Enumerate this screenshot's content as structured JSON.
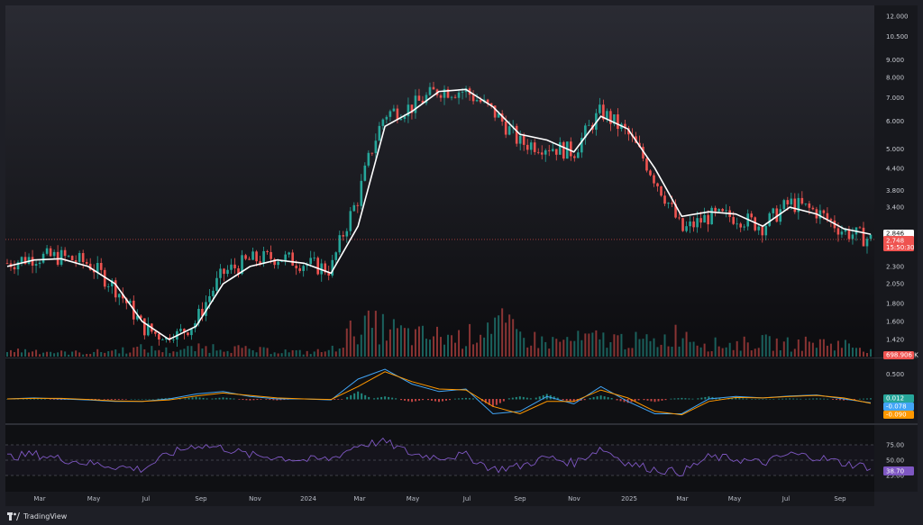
{
  "brand": {
    "name": "TradingView",
    "logo_icon": "tradingview-logo-icon"
  },
  "colors": {
    "up": "#26a69a",
    "down": "#ef5350",
    "ma": "#ffffff",
    "macd": "#42a5f5",
    "signal": "#ff9800",
    "rsi": "#7e57c2",
    "background": "#131419"
  },
  "price_axis": {
    "labels": [
      "12.000",
      "10.500",
      "9.000",
      "8.000",
      "7.000",
      "6.000",
      "5.000",
      "4.400",
      "3.800",
      "3.400",
      "2.300",
      "2.050",
      "1.800",
      "1.600",
      "1.420"
    ]
  },
  "badges": {
    "ma_value": "2.846",
    "last_price": "2.748",
    "countdown": "15:50:30",
    "volume": "698.906 K",
    "macd_hist": "0.012",
    "macd": "-0.078",
    "signal": "-0.090",
    "rsi": "38.70"
  },
  "macd_axis": {
    "labels": [
      "0.500"
    ]
  },
  "rsi_axis": {
    "labels": [
      "75.00",
      "50.00",
      "25.00"
    ]
  },
  "time_axis": {
    "labels": [
      "Mar",
      "May",
      "Jul",
      "Sep",
      "Nov",
      "2024",
      "Mar",
      "May",
      "Jul",
      "Sep",
      "Nov",
      "2025",
      "Mar",
      "May",
      "Jul",
      "Sep"
    ]
  },
  "chart_data": [
    {
      "type": "candlestick",
      "scale": "log",
      "ylim": [
        1.3,
        12.5
      ],
      "x": [
        "2023-02",
        "2023-03",
        "2023-04",
        "2023-05",
        "2023-06",
        "2023-07",
        "2023-08",
        "2023-09",
        "2023-10",
        "2023-11",
        "2023-12",
        "2024-01",
        "2024-02",
        "2024-03",
        "2024-04",
        "2024-05",
        "2024-06",
        "2024-07",
        "2024-08",
        "2024-09",
        "2024-10",
        "2024-11",
        "2024-12",
        "2025-01",
        "2025-02",
        "2025-03",
        "2025-04",
        "2025-05",
        "2025-06",
        "2025-07",
        "2025-08",
        "2025-09",
        "2025-10"
      ],
      "series": [
        {
          "values": [
            2.35,
            2.45,
            2.45,
            2.35,
            2.0,
            1.55,
            1.4,
            1.6,
            2.2,
            2.4,
            2.45,
            2.35,
            2.25,
            3.6,
            6.3,
            6.6,
            7.4,
            7.3,
            6.4,
            5.2,
            5.1,
            4.9,
            6.4,
            5.5,
            4.1,
            2.9,
            3.2,
            3.2,
            3.0,
            3.5,
            3.3,
            2.9,
            2.75
          ]
        },
        {
          "name": "MA",
          "values": [
            2.3,
            2.4,
            2.42,
            2.3,
            2.05,
            1.6,
            1.42,
            1.55,
            2.05,
            2.3,
            2.4,
            2.35,
            2.2,
            3.0,
            5.8,
            6.4,
            7.3,
            7.4,
            6.6,
            5.5,
            5.3,
            4.9,
            6.2,
            5.7,
            4.4,
            3.2,
            3.3,
            3.25,
            3.0,
            3.4,
            3.25,
            2.95,
            2.846
          ]
        }
      ]
    },
    {
      "type": "bar",
      "name": "Volume",
      "x": [
        "2023-02",
        "2023-03",
        "2023-04",
        "2023-05",
        "2023-06",
        "2023-07",
        "2023-08",
        "2023-09",
        "2023-10",
        "2023-11",
        "2023-12",
        "2024-01",
        "2024-02",
        "2024-03",
        "2024-04",
        "2024-05",
        "2024-06",
        "2024-07",
        "2024-08",
        "2024-09",
        "2024-10",
        "2024-11",
        "2024-12",
        "2025-01",
        "2025-02",
        "2025-03",
        "2025-04",
        "2025-05",
        "2025-06",
        "2025-07",
        "2025-08",
        "2025-09",
        "2025-10"
      ],
      "values": [
        0.15,
        0.15,
        0.1,
        0.1,
        0.15,
        0.2,
        0.15,
        0.2,
        0.25,
        0.15,
        0.15,
        0.1,
        0.15,
        0.75,
        0.7,
        0.5,
        0.5,
        0.45,
        0.9,
        0.5,
        0.35,
        0.4,
        0.45,
        0.4,
        0.35,
        0.6,
        0.3,
        0.3,
        0.35,
        0.3,
        0.35,
        0.3,
        0.2
      ]
    },
    {
      "type": "line",
      "name": "MACD",
      "x": [
        "2023-02",
        "2023-03",
        "2023-04",
        "2023-05",
        "2023-06",
        "2023-07",
        "2023-08",
        "2023-09",
        "2023-10",
        "2023-11",
        "2023-12",
        "2024-01",
        "2024-02",
        "2024-03",
        "2024-04",
        "2024-05",
        "2024-06",
        "2024-07",
        "2024-08",
        "2024-09",
        "2024-10",
        "2024-11",
        "2024-12",
        "2025-01",
        "2025-02",
        "2025-03",
        "2025-04",
        "2025-05",
        "2025-06",
        "2025-07",
        "2025-08",
        "2025-09",
        "2025-10"
      ],
      "series": [
        {
          "values": [
            0.0,
            0.02,
            0.0,
            -0.02,
            -0.05,
            -0.05,
            0.0,
            0.1,
            0.15,
            0.05,
            0.0,
            0.0,
            -0.02,
            0.4,
            0.6,
            0.3,
            0.15,
            0.2,
            -0.3,
            -0.25,
            0.05,
            -0.1,
            0.25,
            -0.05,
            -0.3,
            -0.3,
            0.0,
            0.05,
            0.02,
            0.06,
            0.08,
            0.0,
            -0.078
          ]
        },
        {
          "values": [
            0.0,
            0.01,
            0.01,
            -0.01,
            -0.04,
            -0.05,
            -0.02,
            0.06,
            0.12,
            0.07,
            0.02,
            0.0,
            -0.01,
            0.25,
            0.55,
            0.35,
            0.2,
            0.18,
            -0.15,
            -0.3,
            -0.05,
            -0.05,
            0.18,
            0.02,
            -0.25,
            -0.32,
            -0.05,
            0.03,
            0.02,
            0.05,
            0.07,
            0.02,
            -0.09
          ]
        },
        {
          "values": [
            0.0,
            0.01,
            -0.01,
            -0.01,
            -0.01,
            0.0,
            0.02,
            0.04,
            0.03,
            -0.02,
            -0.02,
            0.0,
            -0.01,
            0.15,
            0.05,
            -0.05,
            -0.05,
            0.02,
            -0.15,
            0.05,
            0.1,
            -0.05,
            0.07,
            -0.07,
            -0.05,
            0.02,
            0.05,
            0.02,
            0.0,
            0.01,
            0.01,
            -0.02,
            0.012
          ]
        }
      ]
    },
    {
      "type": "line",
      "name": "RSI",
      "ylim": [
        0,
        100
      ],
      "x": [
        "2023-02",
        "2023-03",
        "2023-04",
        "2023-05",
        "2023-06",
        "2023-07",
        "2023-08",
        "2023-09",
        "2023-10",
        "2023-11",
        "2023-12",
        "2024-01",
        "2024-02",
        "2024-03",
        "2024-04",
        "2024-05",
        "2024-06",
        "2024-07",
        "2024-08",
        "2024-09",
        "2024-10",
        "2024-11",
        "2024-12",
        "2025-01",
        "2025-02",
        "2025-03",
        "2025-04",
        "2025-05",
        "2025-06",
        "2025-07",
        "2025-08",
        "2025-09",
        "2025-10"
      ],
      "series": [
        {
          "values": [
            55,
            60,
            52,
            45,
            40,
            35,
            60,
            75,
            70,
            58,
            55,
            50,
            52,
            75,
            80,
            60,
            55,
            58,
            35,
            40,
            55,
            45,
            70,
            45,
            35,
            30,
            55,
            52,
            45,
            60,
            55,
            45,
            38.7
          ]
        }
      ],
      "levels": [
        75,
        50,
        25
      ]
    }
  ]
}
